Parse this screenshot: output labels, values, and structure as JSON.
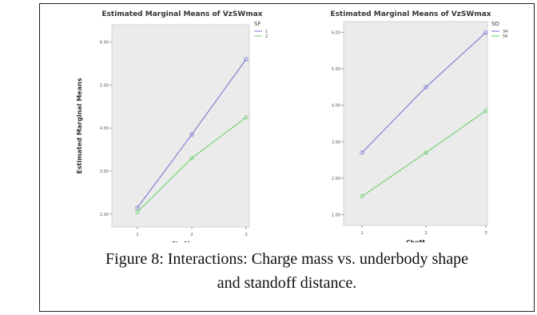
{
  "chart_data": [
    {
      "type": "line",
      "title": "Estimated Marginal Means of VzSWmax",
      "xlabel": "ChgM",
      "ylabel": "Estimated Marginal Means",
      "x": [
        "1",
        "2",
        "3"
      ],
      "y_ticks": [
        "2.00",
        "3.00",
        "4.00",
        "5.00",
        "6.00"
      ],
      "ylim": [
        1.7,
        6.4
      ],
      "legend_title": "SF",
      "legend_position": "top-right",
      "series": [
        {
          "name": "1",
          "values": [
            2.15,
            3.85,
            5.6
          ],
          "color": "#8a8ad8"
        },
        {
          "name": "2",
          "values": [
            2.05,
            3.3,
            4.25
          ],
          "color": "#82d482"
        }
      ]
    },
    {
      "type": "line",
      "title": "Estimated Marginal Means of VzSWmax",
      "xlabel": "ChgM",
      "ylabel": "",
      "x": [
        "1",
        "2",
        "3"
      ],
      "y_ticks": [
        "1.00",
        "2.00",
        "3.00",
        "4.00",
        "5.00",
        "6.00"
      ],
      "ylim": [
        0.7,
        6.3
      ],
      "legend_title": "SD",
      "legend_position": "top-right",
      "series": [
        {
          "name": "34",
          "values": [
            2.7,
            4.5,
            6.0
          ],
          "color": "#8a8ad8"
        },
        {
          "name": "56",
          "values": [
            1.5,
            2.7,
            3.85
          ],
          "color": "#82d482"
        }
      ]
    }
  ],
  "caption": {
    "line1": "Figure 8: Interactions: Charge mass vs. underbody shape",
    "line2": "and standoff distance."
  }
}
